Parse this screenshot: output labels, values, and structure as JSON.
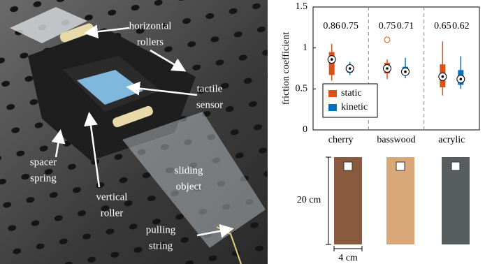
{
  "photo": {
    "annotations": [
      {
        "lines": [
          "horizontal",
          "rollers"
        ]
      },
      {
        "lines": [
          "tactile",
          "sensor"
        ]
      },
      {
        "lines": [
          "spacer",
          "spring"
        ]
      },
      {
        "lines": [
          "vertical",
          "roller"
        ]
      },
      {
        "lines": [
          "sliding",
          "object"
        ]
      },
      {
        "lines": [
          "pulling",
          "string"
        ]
      }
    ]
  },
  "chart_data": {
    "type": "box",
    "ylabel": "friction coefficient",
    "categories": [
      "cherry",
      "basswood",
      "acrylic"
    ],
    "ylim": [
      0,
      1.5
    ],
    "yticks": [
      0,
      0.5,
      1,
      1.5
    ],
    "legend": "lower left",
    "series": [
      {
        "name": "static",
        "color": "#d95319",
        "low": [
          0.6,
          0.62,
          0.42
        ],
        "q1": [
          0.67,
          0.69,
          0.52
        ],
        "median": [
          0.86,
          0.75,
          0.65
        ],
        "q3": [
          0.95,
          0.82,
          0.8
        ],
        "high": [
          1.05,
          0.86,
          1.08
        ],
        "outliers": [
          [],
          [
            1.1
          ],
          []
        ]
      },
      {
        "name": "kinetic",
        "color": "#0072bd",
        "low": [
          0.67,
          0.63,
          0.5
        ],
        "q1": [
          0.7,
          0.67,
          0.55
        ],
        "median": [
          0.75,
          0.71,
          0.62
        ],
        "q3": [
          0.79,
          0.77,
          0.73
        ],
        "high": [
          0.83,
          0.88,
          0.9
        ],
        "outliers": [
          [],
          [],
          []
        ]
      }
    ]
  },
  "samples": {
    "height_label": "20 cm",
    "width_label": "4 cm"
  }
}
